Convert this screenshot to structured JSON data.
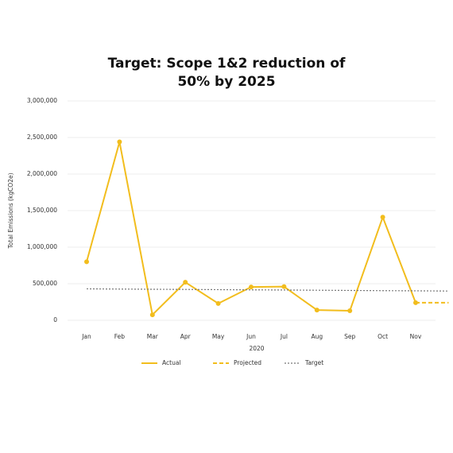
{
  "chart_data": {
    "type": "line",
    "title": "Target: Scope 1&2 reduction of 50% by 2025",
    "ylabel": "Total Emissions (kgCO2e)",
    "xlabel": "2020",
    "categories": [
      "Jan",
      "Feb",
      "Mar",
      "Apr",
      "May",
      "Jun",
      "Jul",
      "Aug",
      "Sep",
      "Oct",
      "Nov",
      null
    ],
    "series": [
      {
        "name": "Actual",
        "color": "#f2bd1d",
        "style": "solid",
        "markers": true,
        "values": [
          800000,
          2440000,
          75000,
          520000,
          230000,
          455000,
          460000,
          140000,
          130000,
          1410000,
          240000,
          null
        ]
      },
      {
        "name": "Projected",
        "color": "#f2bd1d",
        "style": "dashed",
        "markers": false,
        "values": [
          null,
          null,
          null,
          null,
          null,
          null,
          null,
          null,
          null,
          null,
          240000,
          240000
        ]
      },
      {
        "name": "Target",
        "color": "#777777",
        "style": "dotted",
        "markers": false,
        "values": [
          430000,
          427000,
          424000,
          422000,
          419000,
          416000,
          414000,
          411000,
          408000,
          405000,
          403000,
          400000
        ]
      }
    ],
    "ylim": [
      0,
      3000000
    ],
    "yticks": [
      0,
      {
        "value": 500000,
        "label": "500,000"
      },
      {
        "value": 1000000,
        "label": "1,000,000"
      },
      {
        "value": 1500000,
        "label": "1,500,000"
      },
      {
        "value": 2000000,
        "label": "2,000,000"
      },
      {
        "value": 2500000,
        "label": "2,500,000"
      },
      {
        "value": 3000000,
        "label": "3,000,000"
      }
    ],
    "grid": true
  }
}
